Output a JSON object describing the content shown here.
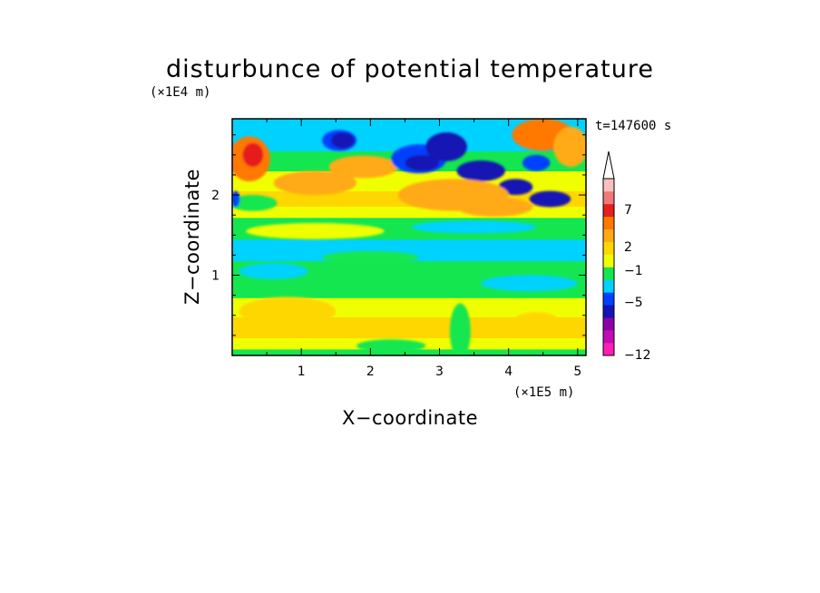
{
  "chart_data": {
    "type": "heatmap",
    "title": "disturbunce of potential temperature",
    "xlabel": "X−coordinate",
    "ylabel": "Z−coordinate",
    "x_unit": "(×1E5 m)",
    "y_unit": "(×1E4 m)",
    "time_label": "t=147600 s",
    "xlim": [
      0,
      5.12
    ],
    "ylim": [
      0,
      2.95
    ],
    "x_ticks": [
      {
        "value": 1,
        "label": "1"
      },
      {
        "value": 2,
        "label": "2"
      },
      {
        "value": 3,
        "label": "3"
      },
      {
        "value": 4,
        "label": "4"
      },
      {
        "value": 5,
        "label": "5"
      }
    ],
    "y_ticks": [
      {
        "value": 1,
        "label": "1"
      },
      {
        "value": 2,
        "label": "2"
      }
    ],
    "colorbar": {
      "levels": [
        {
          "color": "#ff1eb4"
        },
        {
          "color": "#c30ab4"
        },
        {
          "color": "#8c00aa"
        },
        {
          "color": "#1414b4"
        },
        {
          "color": "#0040ff"
        },
        {
          "color": "#00d2ff"
        },
        {
          "color": "#14e650"
        },
        {
          "color": "#f0ff00"
        },
        {
          "color": "#ffd700"
        },
        {
          "color": "#ffaa14"
        },
        {
          "color": "#ff7800"
        },
        {
          "color": "#e61e1e"
        },
        {
          "color": "#f07878"
        },
        {
          "color": "#ffbebe"
        }
      ],
      "labels": [
        "7",
        "2",
        "−1",
        "−5",
        "−12"
      ],
      "extend": "max"
    },
    "field_bands": [
      {
        "z": [
          0.0,
          0.08
        ],
        "color": "#14e650"
      },
      {
        "z": [
          0.08,
          0.22
        ],
        "color": "#f0ff00"
      },
      {
        "z": [
          0.22,
          0.48
        ],
        "color": "#ffd700"
      },
      {
        "z": [
          0.48,
          0.72
        ],
        "color": "#f0ff00"
      },
      {
        "z": [
          0.72,
          1.02
        ],
        "color": "#14e650"
      },
      {
        "z": [
          1.02,
          1.18
        ],
        "color": "#14e650"
      },
      {
        "z": [
          1.18,
          1.45
        ],
        "color": "#00d2ff"
      },
      {
        "z": [
          1.45,
          1.72
        ],
        "color": "#14e650"
      },
      {
        "z": [
          1.72,
          1.86
        ],
        "color": "#f0ff00"
      },
      {
        "z": [
          1.86,
          2.05
        ],
        "color": "#ffd700"
      },
      {
        "z": [
          2.05,
          2.3
        ],
        "color": "#f0ff00"
      },
      {
        "z": [
          2.3,
          2.55
        ],
        "color": "#14e650"
      },
      {
        "z": [
          2.55,
          2.95
        ],
        "color": "#00d2ff"
      }
    ],
    "field_features": [
      {
        "x": 0.25,
        "z": 2.45,
        "rx": 0.3,
        "rz": 0.28,
        "color": "#ff7800"
      },
      {
        "x": 0.3,
        "z": 2.5,
        "rx": 0.15,
        "rz": 0.15,
        "color": "#e61e1e"
      },
      {
        "x": 1.2,
        "z": 2.15,
        "rx": 0.6,
        "rz": 0.15,
        "color": "#ffaa14"
      },
      {
        "x": 1.9,
        "z": 2.35,
        "rx": 0.5,
        "rz": 0.14,
        "color": "#ffaa14"
      },
      {
        "x": 1.55,
        "z": 2.68,
        "rx": 0.25,
        "rz": 0.13,
        "color": "#0040ff"
      },
      {
        "x": 1.6,
        "z": 2.68,
        "rx": 0.17,
        "rz": 0.1,
        "color": "#1414b4"
      },
      {
        "x": 2.7,
        "z": 2.45,
        "rx": 0.4,
        "rz": 0.18,
        "color": "#0040ff"
      },
      {
        "x": 3.1,
        "z": 2.6,
        "rx": 0.3,
        "rz": 0.18,
        "color": "#1414b4"
      },
      {
        "x": 2.75,
        "z": 2.4,
        "rx": 0.25,
        "rz": 0.1,
        "color": "#1414b4"
      },
      {
        "x": 3.6,
        "z": 2.3,
        "rx": 0.35,
        "rz": 0.13,
        "color": "#1414b4"
      },
      {
        "x": 4.1,
        "z": 2.1,
        "rx": 0.25,
        "rz": 0.1,
        "color": "#1414b4"
      },
      {
        "x": 4.6,
        "z": 1.95,
        "rx": 0.3,
        "rz": 0.1,
        "color": "#1414b4"
      },
      {
        "x": 4.4,
        "z": 2.4,
        "rx": 0.2,
        "rz": 0.1,
        "color": "#0040ff"
      },
      {
        "x": 4.5,
        "z": 2.75,
        "rx": 0.45,
        "rz": 0.2,
        "color": "#ff7800"
      },
      {
        "x": 4.9,
        "z": 2.6,
        "rx": 0.25,
        "rz": 0.25,
        "color": "#ffaa14"
      },
      {
        "x": 3.2,
        "z": 2.0,
        "rx": 0.8,
        "rz": 0.2,
        "color": "#ffaa14"
      },
      {
        "x": 3.8,
        "z": 1.85,
        "rx": 0.55,
        "rz": 0.12,
        "color": "#ffaa14"
      },
      {
        "x": 0.3,
        "z": 1.9,
        "rx": 0.35,
        "rz": 0.1,
        "color": "#14e650"
      },
      {
        "x": 0.05,
        "z": 1.95,
        "rx": 0.06,
        "rz": 0.1,
        "color": "#0040ff"
      },
      {
        "x": 1.2,
        "z": 1.55,
        "rx": 1.0,
        "rz": 0.1,
        "color": "#f0ff00"
      },
      {
        "x": 3.5,
        "z": 1.6,
        "rx": 0.9,
        "rz": 0.08,
        "color": "#00d2ff"
      },
      {
        "x": 0.6,
        "z": 1.05,
        "rx": 0.5,
        "rz": 0.1,
        "color": "#00d2ff"
      },
      {
        "x": 4.3,
        "z": 0.9,
        "rx": 0.7,
        "rz": 0.1,
        "color": "#00d2ff"
      },
      {
        "x": 2.0,
        "z": 1.22,
        "rx": 0.7,
        "rz": 0.08,
        "color": "#14e650"
      },
      {
        "x": 0.8,
        "z": 0.55,
        "rx": 0.7,
        "rz": 0.18,
        "color": "#ffd700"
      },
      {
        "x": 3.3,
        "z": 0.3,
        "rx": 0.15,
        "rz": 0.35,
        "color": "#14e650"
      },
      {
        "x": 4.4,
        "z": 0.4,
        "rx": 0.35,
        "rz": 0.14,
        "color": "#ffd700"
      },
      {
        "x": 2.3,
        "z": 0.12,
        "rx": 0.5,
        "rz": 0.08,
        "color": "#14e650"
      }
    ]
  }
}
